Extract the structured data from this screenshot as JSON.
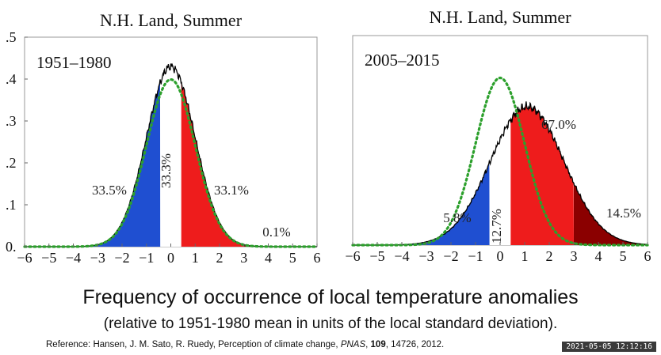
{
  "chart_data": [
    {
      "type": "area",
      "title": "N.H. Land, Summer",
      "period_label": "1951–1980",
      "xlim": [
        -6,
        6
      ],
      "ylim": [
        0,
        0.5
      ],
      "x_ticks": [
        "−6",
        "−5",
        "−4",
        "−3",
        "−2",
        "−1",
        "0",
        "1",
        "2",
        "3",
        "4",
        "5",
        "6"
      ],
      "y_ticks": [
        ".5",
        ".4",
        ".3",
        ".2",
        ".1",
        "0."
      ],
      "reference_curve": {
        "style": "dotted",
        "color": "#2ca02c",
        "mean": 0,
        "sd": 1
      },
      "distribution": {
        "mean": 0,
        "sd": 1,
        "peak": 0.43
      },
      "regions": [
        {
          "from": -6,
          "to": -0.43,
          "color": "#1f4fd1",
          "percent_label": "33.5%"
        },
        {
          "from": -0.43,
          "to": 0.43,
          "color": "#ffffff",
          "percent_label": "33.3%"
        },
        {
          "from": 0.43,
          "to": 3,
          "color": "#ee1c1c",
          "percent_label": "33.1%"
        },
        {
          "from": 3,
          "to": 6,
          "color": "#8b0000",
          "percent_label": "0.1%"
        }
      ]
    },
    {
      "type": "area",
      "title": "N.H. Land, Summer",
      "period_label": "2005–2015",
      "xlim": [
        -6,
        6
      ],
      "ylim": [
        0,
        0.5
      ],
      "x_ticks": [
        "−6",
        "−5",
        "−4",
        "−3",
        "−2",
        "−1",
        "0",
        "1",
        "2",
        "3",
        "4",
        "5",
        "6"
      ],
      "reference_curve": {
        "style": "dotted",
        "color": "#2ca02c",
        "mean": 0,
        "sd": 1
      },
      "distribution": {
        "mean": 1.1,
        "sd": 1.5,
        "peak": 0.33
      },
      "regions": [
        {
          "from": -6,
          "to": -0.43,
          "color": "#1f4fd1",
          "percent_label": "5.8%"
        },
        {
          "from": -0.43,
          "to": 0.43,
          "color": "#ffffff",
          "percent_label": "12.7%"
        },
        {
          "from": 0.43,
          "to": 3,
          "color": "#ee1c1c",
          "percent_label": "67.0%"
        },
        {
          "from": 3,
          "to": 6,
          "color": "#8b0000",
          "percent_label": "14.5%"
        }
      ]
    }
  ],
  "caption": {
    "title": "Frequency of occurrence of local temperature anomalies",
    "subtitle": "(relative to 1951-1980 mean in units of the local standard deviation).",
    "reference_prefix": "Reference: Hansen, J. M. Sato, R. Ruedy, Perception of climate change, ",
    "reference_journal": "PNAS",
    "reference_sep1": ", ",
    "reference_volume": "109",
    "reference_rest": ", 14726, 2012."
  },
  "timestamp": "2021-05-05 12:12:16"
}
